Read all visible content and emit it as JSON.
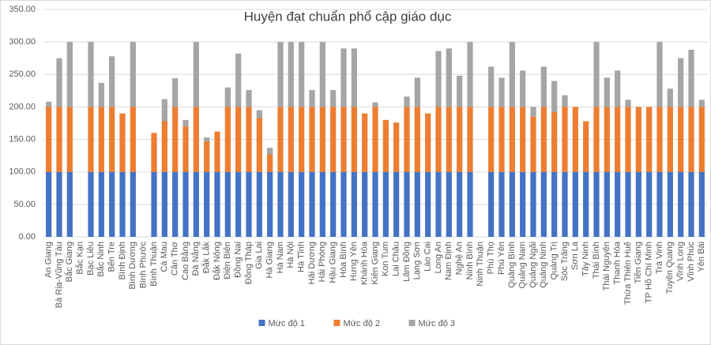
{
  "chart_data": {
    "type": "stacked_bar",
    "title": "Huyện đạt chuẩn phổ cập giáo dục",
    "categories": [
      "An Giang",
      "Bà Rịa-Vũng Tàu",
      "Bắc Giang",
      "Bắc Kạn",
      "Bạc Liêu",
      "Bắc Ninh",
      "Bến Tre",
      "Bình Định",
      "Bình Dương",
      "Bình Phước",
      "Bình Thuận",
      "Cà Mau",
      "Cần Thơ",
      "Cao Bằng",
      "Đà Nẵng",
      "Đắk Lắk",
      "Đắk Nông",
      "Điện Biên",
      "Đồng Nai",
      "Đồng Tháp",
      "Gia Lai",
      "Hà Giang",
      "Hà Nam",
      "Hà Nội",
      "Hà Tĩnh",
      "Hải Dương",
      "Hải Phòng",
      "Hậu Giang",
      "Hòa Bình",
      "Hưng Yên",
      "Khánh Hòa",
      "Kiên Giang",
      "Kon Tum",
      "Lai Châu",
      "Lâm Đồng",
      "Lạng Sơn",
      "Lào Cai",
      "Long An",
      "Nam Định",
      "Nghệ An",
      "Ninh Bình",
      "Ninh Thuận",
      "Phú Thọ",
      "Phú Yên",
      "Quảng Bình",
      "Quảng Nam",
      "Quảng Ngãi",
      "Quảng Ninh",
      "Quảng Trị",
      "Sóc Trăng",
      "Sơn La",
      "Tây Ninh",
      "Thái Bình",
      "Thái Nguyên",
      "Thanh Hóa",
      "Thừa Thiên Huế",
      "Tiền Giang",
      "TP Hồ Chí Minh",
      "Trà Vinh",
      "Tuyên Quang",
      "Vĩnh Long",
      "Vĩnh Phúc",
      "Yên Bái"
    ],
    "series": [
      {
        "name": "Mức độ 1",
        "color": "#4472c4",
        "values": [
          100,
          100,
          100,
          null,
          100,
          100,
          100,
          100,
          100,
          null,
          100,
          100,
          100,
          100,
          100,
          100,
          100,
          100,
          100,
          100,
          100,
          100,
          100,
          100,
          100,
          100,
          100,
          100,
          100,
          100,
          100,
          100,
          100,
          100,
          100,
          100,
          100,
          100,
          100,
          100,
          100,
          null,
          100,
          100,
          100,
          100,
          100,
          100,
          100,
          100,
          100,
          100,
          100,
          100,
          100,
          100,
          100,
          100,
          100,
          100,
          100,
          100,
          100
        ]
      },
      {
        "name": "Mức độ 2",
        "color": "#ed7d31",
        "values": [
          100,
          100,
          100,
          null,
          100,
          100,
          100,
          90,
          100,
          null,
          60,
          78,
          100,
          70,
          100,
          47,
          62,
          100,
          100,
          100,
          83,
          27,
          100,
          100,
          100,
          100,
          100,
          100,
          100,
          100,
          90,
          100,
          80,
          76,
          100,
          100,
          90,
          100,
          100,
          100,
          100,
          null,
          100,
          100,
          100,
          100,
          85,
          100,
          92,
          100,
          100,
          78,
          100,
          100,
          100,
          100,
          100,
          100,
          100,
          100,
          100,
          100,
          100
        ]
      },
      {
        "name": "Mức độ 3",
        "color": "#a5a5a5",
        "values": [
          8,
          75,
          100,
          null,
          100,
          37,
          78,
          0,
          100,
          null,
          0,
          34,
          44,
          10,
          100,
          6,
          0,
          30,
          82,
          26,
          12,
          10,
          100,
          100,
          100,
          26,
          100,
          26,
          90,
          90,
          0,
          7,
          0,
          0,
          16,
          45,
          0,
          86,
          90,
          48,
          100,
          null,
          62,
          45,
          100,
          56,
          15,
          62,
          48,
          18,
          0,
          0,
          100,
          45,
          56,
          11,
          0,
          0,
          100,
          28,
          75,
          88,
          11
        ]
      }
    ],
    "ylim": [
      0,
      350
    ],
    "yticks": [
      {
        "value": 0,
        "label": "0.00"
      },
      {
        "value": 50,
        "label": "50.00"
      },
      {
        "value": 100,
        "label": "100.00"
      },
      {
        "value": 150,
        "label": "150.00"
      },
      {
        "value": 200,
        "label": "200.00"
      },
      {
        "value": 250,
        "label": "250.00"
      },
      {
        "value": 300,
        "label": "300.00"
      },
      {
        "value": 350,
        "label": "350.00"
      }
    ],
    "grid": true,
    "legend": "bottom"
  }
}
